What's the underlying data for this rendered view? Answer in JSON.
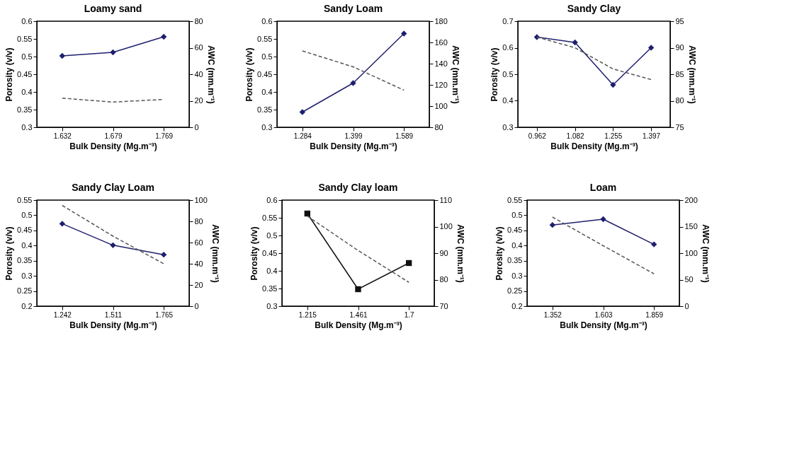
{
  "chart_data": [
    {
      "type": "line",
      "title": "Loamy sand",
      "xlabel": "Bulk Density (Mg.m⁻³)",
      "ylabel": "Porosity (v/v)",
      "y2label": "AWC (mm.m⁻¹)",
      "categories": [
        "1.632",
        "1.679",
        "1.769"
      ],
      "ylim": [
        0.3,
        0.6
      ],
      "yticks": [
        0.3,
        0.35,
        0.4,
        0.45,
        0.5,
        0.55,
        0.6
      ],
      "y2lim": [
        0,
        80
      ],
      "y2ticks": [
        0,
        20,
        40,
        60,
        80
      ],
      "grid": false,
      "series": [
        {
          "color": "#1f1f6e",
          "values": [
            0.502,
            0.512,
            0.556
          ],
          "marker": "diamond",
          "line_style": "solid"
        },
        {
          "color": "#555555",
          "values": [
            22,
            19,
            21
          ],
          "axis": "y2",
          "marker": "none",
          "line_style": "dashed"
        }
      ]
    },
    {
      "type": "line",
      "title": "Sandy Loam",
      "xlabel": "Bulk Density (Mg.m⁻³)",
      "ylabel": "Porosity (v/v)",
      "y2label": "AWC (mm.m⁻¹)",
      "categories": [
        "1.284",
        "1.399",
        "1.589"
      ],
      "ylim": [
        0.3,
        0.6
      ],
      "yticks": [
        0.3,
        0.35,
        0.4,
        0.45,
        0.5,
        0.55,
        0.6
      ],
      "y2lim": [
        80,
        180
      ],
      "y2ticks": [
        80,
        100,
        120,
        140,
        160,
        180
      ],
      "grid": false,
      "series": [
        {
          "color": "#1f1f6e",
          "values": [
            0.343,
            0.425,
            0.565
          ],
          "marker": "diamond",
          "line_style": "solid"
        },
        {
          "color": "#555555",
          "values": [
            152,
            137,
            115
          ],
          "axis": "y2",
          "marker": "none",
          "line_style": "dashed"
        }
      ]
    },
    {
      "type": "line",
      "title": "Sandy Clay",
      "xlabel": "Bulk Density (Mg.m⁻³)",
      "ylabel": "Porosity (v/v)",
      "y2label": "AWC (mm.m⁻¹)",
      "categories": [
        "0.962",
        "1.082",
        "1.255",
        "1.397"
      ],
      "ylim": [
        0.3,
        0.7
      ],
      "yticks": [
        0.3,
        0.4,
        0.5,
        0.6,
        0.7
      ],
      "y2lim": [
        75,
        95
      ],
      "y2ticks": [
        75,
        80,
        85,
        90,
        95
      ],
      "grid": false,
      "series": [
        {
          "color": "#1f1f6e",
          "values": [
            0.64,
            0.62,
            0.46,
            0.6
          ],
          "marker": "diamond",
          "line_style": "solid"
        },
        {
          "color": "#555555",
          "values": [
            92,
            90,
            86,
            84
          ],
          "axis": "y2",
          "marker": "none",
          "line_style": "dashed"
        }
      ]
    },
    {
      "type": "line",
      "title": "Sandy Clay Loam",
      "xlabel": "Bulk Density (Mg.m⁻³)",
      "ylabel": "Porosity (v/v)",
      "y2label": "AWC (mm.m⁻¹)",
      "categories": [
        "1.242",
        "1.511",
        "1.765"
      ],
      "ylim": [
        0.2,
        0.55
      ],
      "yticks": [
        0.2,
        0.25,
        0.3,
        0.35,
        0.4,
        0.45,
        0.5,
        0.55
      ],
      "y2lim": [
        0,
        100
      ],
      "y2ticks": [
        0,
        20,
        40,
        60,
        80,
        100
      ],
      "grid": false,
      "series": [
        {
          "color": "#1f1f6e",
          "values": [
            0.472,
            0.401,
            0.37
          ],
          "marker": "diamond",
          "line_style": "solid"
        },
        {
          "color": "#555555",
          "values": [
            95,
            66,
            40
          ],
          "axis": "y2",
          "marker": "none",
          "line_style": "dashed"
        }
      ]
    },
    {
      "type": "line",
      "title": "Sandy Clay loam",
      "xlabel": "Bulk Density (Mg.m⁻³)",
      "ylabel": "Porosity (v/v)",
      "y2label": "AWC (mm.m⁻¹)",
      "categories": [
        "1.215",
        "1.461",
        "1.7"
      ],
      "ylim": [
        0.3,
        0.6
      ],
      "yticks": [
        0.3,
        0.35,
        0.4,
        0.45,
        0.5,
        0.55,
        0.6
      ],
      "y2lim": [
        70,
        110
      ],
      "y2ticks": [
        70,
        80,
        90,
        100,
        110
      ],
      "grid": false,
      "series": [
        {
          "color": "#111111",
          "values": [
            0.562,
            0.348,
            0.422
          ],
          "marker": "square",
          "line_style": "solid"
        },
        {
          "color": "#555555",
          "values": [
            104,
            91,
            79
          ],
          "axis": "y2",
          "marker": "none",
          "line_style": "dashed"
        }
      ]
    },
    {
      "type": "line",
      "title": "Loam",
      "xlabel": "Bulk Density (Mg.m⁻³)",
      "ylabel": "Porosity (v/v)",
      "y2label": "AWC (mm.m⁻¹)",
      "categories": [
        "1.352",
        "1.603",
        "1.859"
      ],
      "ylim": [
        0.2,
        0.55
      ],
      "yticks": [
        0.2,
        0.25,
        0.3,
        0.35,
        0.4,
        0.45,
        0.5,
        0.55
      ],
      "y2lim": [
        0,
        200
      ],
      "y2ticks": [
        0,
        50,
        100,
        150,
        200
      ],
      "grid": false,
      "series": [
        {
          "color": "#1f1f6e",
          "values": [
            0.468,
            0.487,
            0.404
          ],
          "marker": "diamond",
          "line_style": "solid"
        },
        {
          "color": "#555555",
          "values": [
            168,
            114,
            61
          ],
          "axis": "y2",
          "marker": "none",
          "line_style": "dashed"
        }
      ]
    }
  ]
}
